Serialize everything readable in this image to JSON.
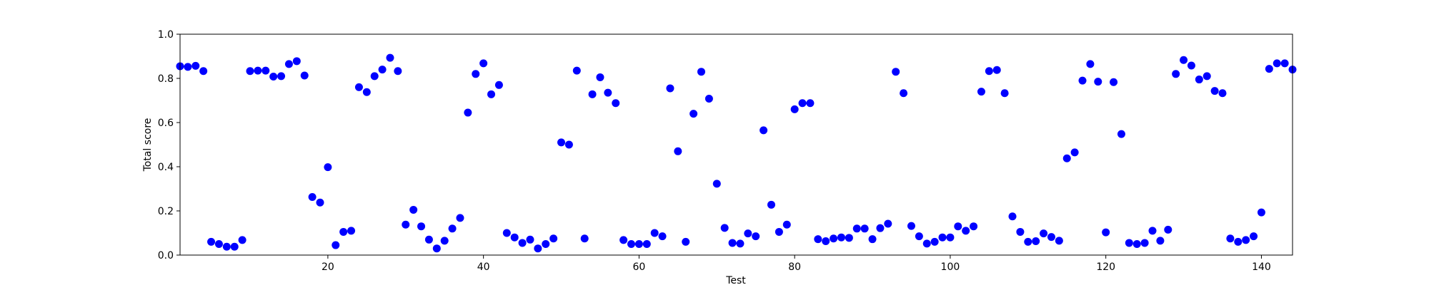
{
  "chart_data": {
    "type": "scatter",
    "title": "",
    "xlabel": "Test",
    "ylabel": "Total score",
    "xlim": [
      1,
      144
    ],
    "ylim": [
      0.0,
      1.0
    ],
    "xticks": [
      20,
      40,
      60,
      80,
      100,
      120,
      140
    ],
    "xtick_labels": [
      "20",
      "40",
      "60",
      "80",
      "100",
      "120",
      "140"
    ],
    "yticks": [
      0.0,
      0.2,
      0.4,
      0.6,
      0.8,
      1.0
    ],
    "ytick_labels": [
      "0.0",
      "0.2",
      "0.4",
      "0.6",
      "0.8",
      "1.0"
    ],
    "grid": false,
    "marker_color": "#0000ff",
    "x": [
      1,
      2,
      3,
      4,
      5,
      6,
      7,
      8,
      9,
      10,
      11,
      12,
      13,
      14,
      15,
      16,
      17,
      18,
      19,
      20,
      21,
      22,
      23,
      24,
      25,
      26,
      27,
      28,
      29,
      30,
      31,
      32,
      33,
      34,
      35,
      36,
      37,
      38,
      39,
      40,
      41,
      42,
      43,
      44,
      45,
      46,
      47,
      48,
      49,
      50,
      51,
      52,
      53,
      54,
      55,
      56,
      57,
      58,
      59,
      60,
      61,
      62,
      63,
      64,
      65,
      66,
      67,
      68,
      69,
      70,
      71,
      72,
      73,
      74,
      75,
      76,
      77,
      78,
      79,
      80,
      81,
      82,
      83,
      84,
      85,
      86,
      87,
      88,
      89,
      90,
      91,
      92,
      93,
      94,
      95,
      96,
      97,
      98,
      99,
      100,
      101,
      102,
      103,
      104,
      105,
      106,
      107,
      108,
      109,
      110,
      111,
      112,
      113,
      114,
      115,
      116,
      117,
      118,
      119,
      120,
      121,
      122,
      123,
      124,
      125,
      126,
      127,
      128,
      129,
      130,
      131,
      132,
      133,
      134,
      135,
      136,
      137,
      138,
      139,
      140,
      141,
      142,
      143,
      144
    ],
    "y": [
      0.855,
      0.852,
      0.857,
      0.833,
      0.06,
      0.05,
      0.038,
      0.038,
      0.068,
      0.833,
      0.835,
      0.835,
      0.808,
      0.81,
      0.865,
      0.878,
      0.813,
      0.263,
      0.238,
      0.398,
      0.045,
      0.105,
      0.11,
      0.76,
      0.738,
      0.81,
      0.84,
      0.893,
      0.833,
      0.138,
      0.205,
      0.13,
      0.07,
      0.03,
      0.065,
      0.12,
      0.168,
      0.645,
      0.82,
      0.868,
      0.728,
      0.77,
      0.1,
      0.08,
      0.055,
      0.07,
      0.03,
      0.05,
      0.075,
      0.51,
      0.5,
      0.835,
      0.075,
      0.728,
      0.805,
      0.735,
      0.688,
      0.068,
      0.05,
      0.05,
      0.05,
      0.1,
      0.085,
      0.755,
      0.47,
      0.06,
      0.64,
      0.83,
      0.708,
      0.323,
      0.123,
      0.055,
      0.052,
      0.098,
      0.085,
      0.565,
      0.228,
      0.105,
      0.138,
      0.66,
      0.688,
      0.688,
      0.072,
      0.063,
      0.075,
      0.08,
      0.078,
      0.12,
      0.12,
      0.072,
      0.122,
      0.142,
      0.83,
      0.733,
      0.132,
      0.085,
      0.052,
      0.06,
      0.08,
      0.08,
      0.13,
      0.11,
      0.13,
      0.74,
      0.833,
      0.838,
      0.733,
      0.175,
      0.105,
      0.06,
      0.063,
      0.098,
      0.082,
      0.065,
      0.438,
      0.465,
      0.79,
      0.865,
      0.785,
      0.103,
      0.783,
      0.548,
      0.055,
      0.05,
      0.055,
      0.11,
      0.065,
      0.115,
      0.82,
      0.883,
      0.858,
      0.795,
      0.81,
      0.743,
      0.733,
      0.075,
      0.06,
      0.068,
      0.085,
      0.193,
      0.843,
      0.868,
      0.868,
      0.84
    ]
  }
}
